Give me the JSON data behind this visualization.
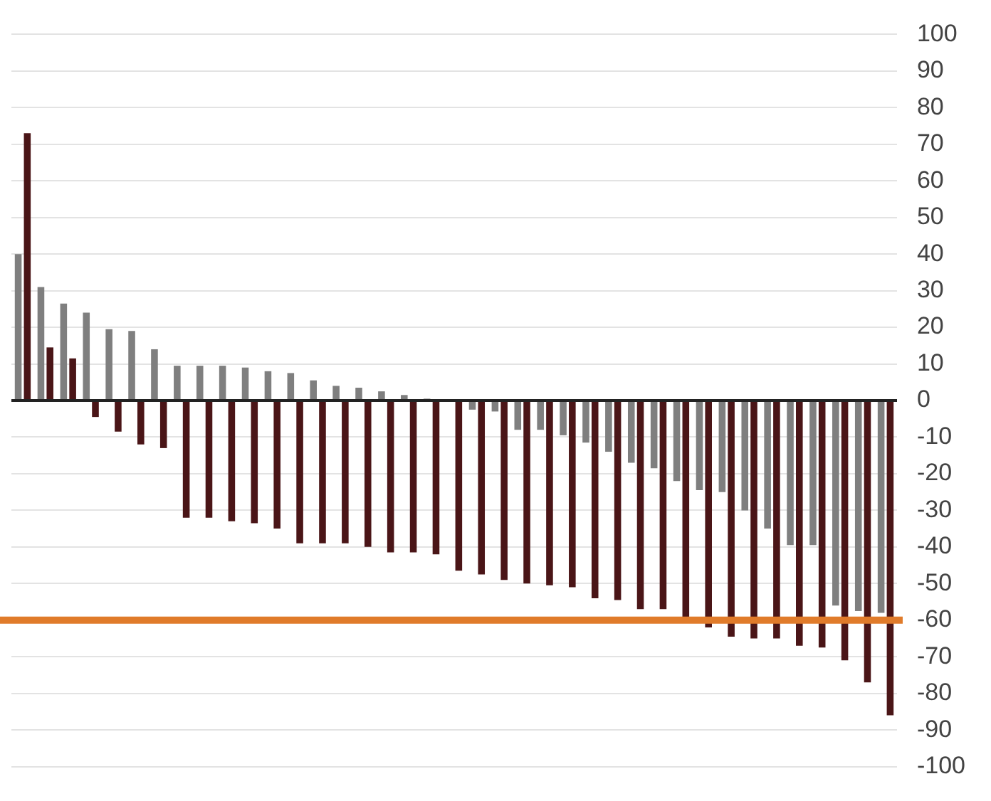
{
  "chart_data": {
    "type": "bar",
    "categories": [
      null,
      null,
      null,
      null,
      null,
      null,
      null,
      null,
      null,
      null,
      null,
      null,
      null,
      null,
      null,
      null,
      null,
      null,
      null,
      null,
      null,
      null,
      null,
      null,
      null,
      null,
      null,
      null,
      null,
      null,
      null,
      null,
      null,
      null,
      null,
      null,
      null,
      null,
      null
    ],
    "series": [
      {
        "color": "#7f7f7f",
        "values": [
          40,
          31,
          26.5,
          24,
          19.5,
          19,
          14,
          9.5,
          9.5,
          9.5,
          9,
          8,
          7.5,
          5.5,
          4,
          3.5,
          2.5,
          1.5,
          0.5,
          0,
          -2.5,
          -3,
          -8,
          -8,
          -9.5,
          -11.5,
          -14,
          -17,
          -18.5,
          -22,
          -24.5,
          -25,
          -30,
          -35,
          -39.5,
          -39.5,
          -56,
          -57.5,
          -58
        ]
      },
      {
        "color": "#4a1517",
        "values": [
          73,
          14.5,
          11.5,
          -4.5,
          -8.5,
          -12,
          -13,
          -32,
          -32,
          -33,
          -33.5,
          -35,
          -39,
          -39,
          -39,
          -40,
          -41.5,
          -41.5,
          -42,
          -46.5,
          -47.5,
          -49,
          -50,
          -50.5,
          -51,
          -54,
          -54.5,
          -57,
          -57,
          -60,
          -62,
          -64.5,
          -65,
          -65,
          -67,
          -67.5,
          -71,
          -77,
          -86
        ]
      }
    ],
    "ylim": [
      -100,
      100
    ],
    "yticks": [
      -100,
      -90,
      -80,
      -70,
      -60,
      -50,
      -40,
      -30,
      -20,
      -10,
      0,
      10,
      20,
      30,
      40,
      50,
      60,
      70,
      80,
      90,
      100
    ],
    "grid": "y",
    "legend": false,
    "tick_labels": "y",
    "ref_lines": [
      {
        "axis": "y",
        "value": -60,
        "color": "#e07b2a"
      }
    ]
  }
}
